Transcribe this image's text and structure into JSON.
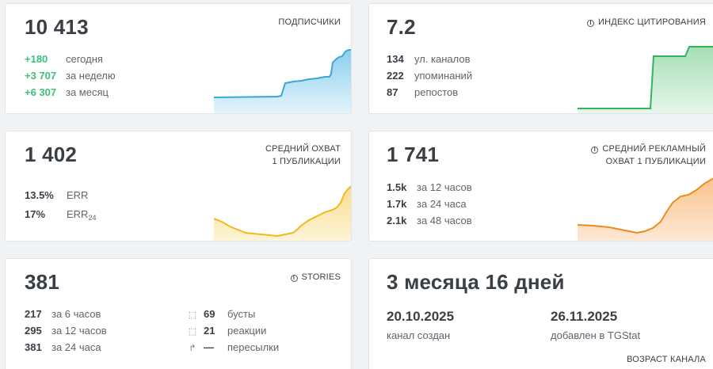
{
  "subscribers": {
    "value": "10 413",
    "label": "ПОДПИСЧИКИ",
    "rows": [
      {
        "value": "+180",
        "desc": "сегодня"
      },
      {
        "value": "+3 707",
        "desc": "за неделю"
      },
      {
        "value": "+6 307",
        "desc": "за месяц"
      }
    ],
    "color": "#3aa7d6"
  },
  "citation": {
    "value": "7.2",
    "label": "ИНДЕКС ЦИТИРОВАНИЯ",
    "rows": [
      {
        "value": "134",
        "desc": "ул. каналов"
      },
      {
        "value": "222",
        "desc": "упоминаний"
      },
      {
        "value": "87",
        "desc": "репостов"
      }
    ],
    "color": "#2fb55a"
  },
  "reach": {
    "value": "1 402",
    "label_line1": "СРЕДНИЙ ОХВАТ",
    "label_line2": "1 ПУБЛИКАЦИИ",
    "err_value": "13.5%",
    "err_label": "ERR",
    "err24_value": "17%",
    "err24_label": "ERR",
    "err24_sub": "24",
    "color": "#f2b81c"
  },
  "ad_reach": {
    "value": "1 741",
    "label_line1": "СРЕДНИЙ РЕКЛАМНЫЙ",
    "label_line2": "ОХВАТ 1 ПУБЛИКАЦИИ",
    "rows": [
      {
        "value": "1.5k",
        "desc": "за 12 часов"
      },
      {
        "value": "1.7k",
        "desc": "за 24 часа"
      },
      {
        "value": "2.1k",
        "desc": "за 48 часов"
      }
    ],
    "color": "#f08a1c"
  },
  "stories": {
    "value": "381",
    "label": "STORIES",
    "rows": [
      {
        "value": "217",
        "desc": "за 6 часов"
      },
      {
        "value": "295",
        "desc": "за 12 часов"
      },
      {
        "value": "381",
        "desc": "за 24 часа"
      }
    ],
    "rows2": [
      {
        "icon": "boost-icon",
        "glyph": "⬚",
        "value": "69",
        "desc": "бусты"
      },
      {
        "icon": "reaction-icon",
        "glyph": "⬚",
        "value": "21",
        "desc": "реакции"
      },
      {
        "icon": "forward-icon",
        "glyph": "↱",
        "value": "—",
        "desc": "пересылки"
      }
    ]
  },
  "age": {
    "value": "3 месяца 16 дней",
    "created_date": "20.10.2025",
    "created_label": "канал создан",
    "added_date": "26.11.2025",
    "added_label": "добавлен в TGStat",
    "label": "ВОЗРАСТ КАНАЛА"
  }
}
